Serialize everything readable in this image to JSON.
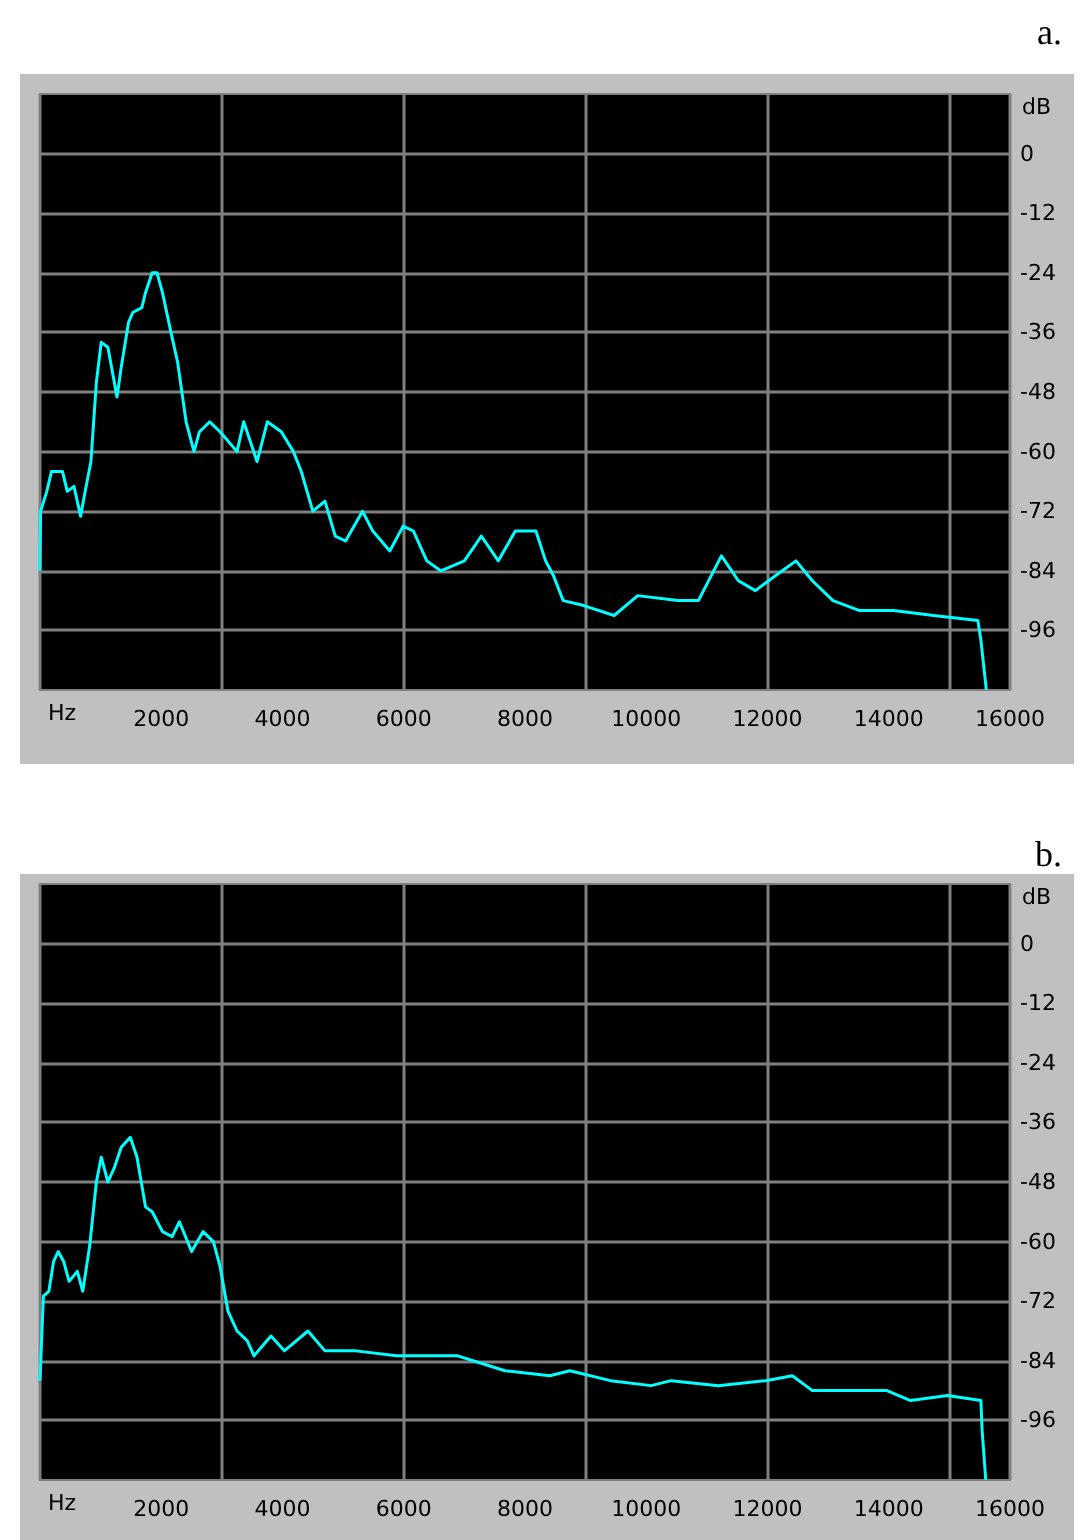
{
  "chart_data": [
    {
      "type": "line",
      "title": "a.",
      "xlabel": "Hz",
      "ylabel": "dB",
      "xlim": [
        0,
        16000
      ],
      "xticks": [
        2000,
        4000,
        6000,
        8000,
        10000,
        12000,
        14000,
        16000
      ],
      "ylim": [
        -108,
        12
      ],
      "yticks": [
        0,
        -12,
        -24,
        -36,
        -48,
        -60,
        -72,
        -84,
        -96
      ],
      "grid": true,
      "marker": "none",
      "series": [
        {
          "color": "#00ffff",
          "x": [
            0,
            10,
            112,
            190,
            370,
            450,
            560,
            670,
            730,
            840,
            930,
            1010,
            1120,
            1270,
            1340,
            1460,
            1530,
            1680,
            1740,
            1850,
            1930,
            2020,
            2160,
            2270,
            2410,
            2540,
            2630,
            2800,
            2970,
            3250,
            3360,
            3580,
            3750,
            3980,
            4180,
            4310,
            4500,
            4700,
            4870,
            5040,
            5320,
            5490,
            5770,
            5990,
            6160,
            6380,
            6610,
            7000,
            7280,
            7560,
            7840,
            8180,
            8340,
            8470,
            8630,
            8970,
            9470,
            9860,
            10520,
            10860,
            11240,
            11520,
            11800,
            12130,
            12470,
            12740,
            13080,
            13520,
            14080,
            14740,
            15470,
            15520,
            15610
          ],
          "values": [
            -84,
            -72,
            -68,
            -64,
            -64,
            -68,
            -67,
            -73,
            -69,
            -62,
            -46,
            -38,
            -39,
            -49,
            -43,
            -34,
            -32,
            -31,
            -28,
            -24,
            -24,
            -28,
            -36,
            -42,
            -54,
            -60,
            -56,
            -54,
            -56,
            -60,
            -54,
            -62,
            -54,
            -56,
            -60,
            -64,
            -72,
            -70,
            -77,
            -78,
            -72,
            -76,
            -80,
            -75,
            -76,
            -82,
            -84,
            -82,
            -77,
            -82,
            -76,
            -76,
            -82,
            -85,
            -90,
            -91,
            -93,
            -89,
            -90,
            -90,
            -81,
            -86,
            -88,
            -85,
            -82,
            -86,
            -90,
            -92,
            -92,
            -93,
            -94,
            -98,
            -108
          ]
        }
      ]
    },
    {
      "type": "line",
      "title": "b.",
      "xlabel": "Hz",
      "ylabel": "dB",
      "xlim": [
        0,
        16000
      ],
      "xticks": [
        2000,
        4000,
        6000,
        8000,
        10000,
        12000,
        14000,
        16000
      ],
      "ylim": [
        -108,
        12
      ],
      "yticks": [
        0,
        -12,
        -24,
        -36,
        -48,
        -60,
        -72,
        -84,
        -96
      ],
      "grid": true,
      "marker": "none",
      "series": [
        {
          "color": "#00ffff",
          "x": [
            0,
            56,
            146,
            224,
            300,
            390,
            480,
            616,
            705,
            818,
            930,
            1010,
            1120,
            1230,
            1340,
            1490,
            1600,
            1740,
            1850,
            2020,
            2180,
            2300,
            2500,
            2690,
            2860,
            2970,
            3100,
            3250,
            3420,
            3530,
            3810,
            4030,
            4420,
            4700,
            5210,
            5880,
            6890,
            7670,
            8410,
            8740,
            9410,
            10080,
            10410,
            11190,
            11970,
            12410,
            12740,
            13410,
            13970,
            14360,
            14970,
            15520,
            15540,
            15600
          ],
          "values": [
            -88,
            -71,
            -70,
            -64,
            -62,
            -64,
            -68,
            -66,
            -70,
            -61,
            -48,
            -43,
            -48,
            -45,
            -41,
            -39,
            -43,
            -53,
            -54,
            -58,
            -59,
            -56,
            -62,
            -58,
            -60,
            -65,
            -74,
            -78,
            -80,
            -83,
            -79,
            -82,
            -78,
            -82,
            -82,
            -83,
            -83,
            -86,
            -87,
            -86,
            -88,
            -89,
            -88,
            -89,
            -88,
            -87,
            -90,
            -90,
            -90,
            -92,
            -91,
            -92,
            -98,
            -108
          ]
        }
      ]
    }
  ]
}
